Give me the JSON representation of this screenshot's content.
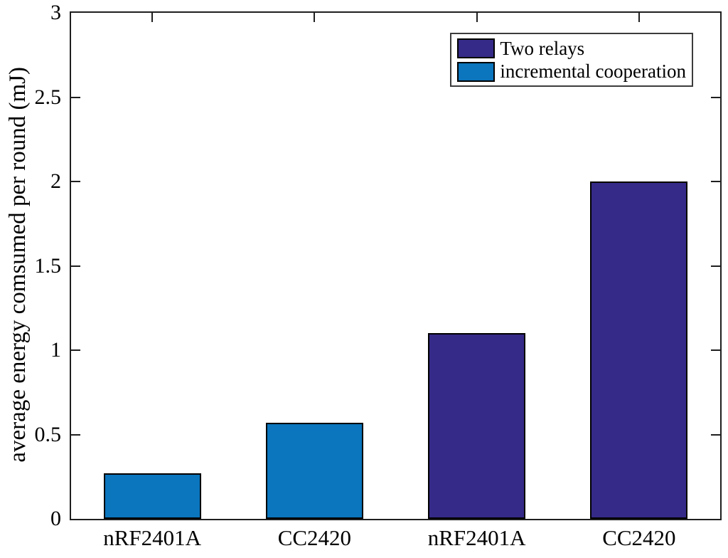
{
  "chart_data": {
    "type": "bar",
    "title": "",
    "xlabel": "",
    "ylabel": "average energy comsumed per round (mJ)",
    "categories": [
      "nRF2401A",
      "CC2420",
      "nRF2401A",
      "CC2420"
    ],
    "values": [
      0.27,
      0.57,
      1.1,
      2.0
    ],
    "bar_series": [
      "incremental cooperation",
      "incremental cooperation",
      "Two relays",
      "Two relays"
    ],
    "series_colors": {
      "Two relays": "#352A87",
      "incremental cooperation": "#0B75BD"
    },
    "ylim": [
      0,
      3
    ],
    "yticks": [
      0,
      0.5,
      1,
      1.5,
      2,
      2.5,
      3
    ],
    "ytick_labels": [
      "0",
      "0.5",
      "1",
      "1.5",
      "2",
      "2.5",
      "3"
    ],
    "grid": false,
    "tick_direction": "in",
    "axis_color": "#1f1f1f",
    "bar_edge_color": "#000000",
    "bar_width_fraction": 0.6,
    "legend": {
      "position": "top-right",
      "entries": [
        {
          "label": "Two relays",
          "color": "#352A87"
        },
        {
          "label": "incremental cooperation",
          "color": "#0B75BD"
        }
      ]
    }
  }
}
